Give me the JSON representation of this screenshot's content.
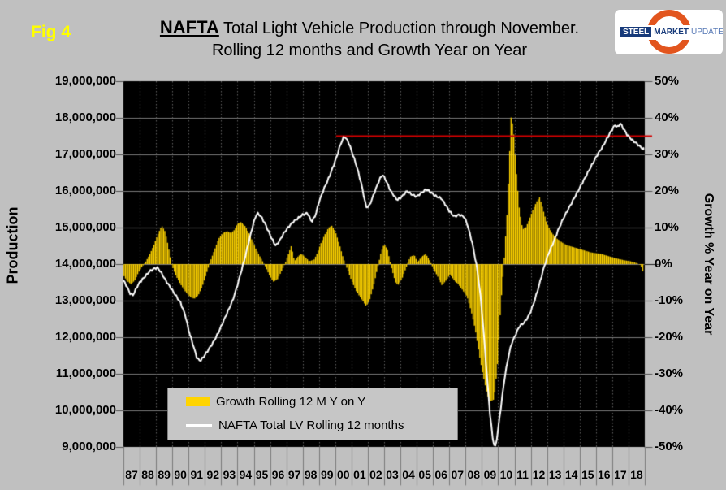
{
  "fig_label": "Fig 4",
  "title": {
    "line1_emph": "NAFTA",
    "line1_rest": " Total Light Vehicle Production through November.",
    "line2": "Rolling 12 months and Growth Year on Year"
  },
  "logo": {
    "word1": "STEEL",
    "word2": "MARKET",
    "word3": "UPDATE"
  },
  "colors": {
    "background": "#c0c0c0",
    "plot_background": "#000000",
    "bar": "#ffd400",
    "line": "#ffffff",
    "reference_line": "#d40000",
    "h_grid": "#7a7a7a",
    "v_grid": "#5f5f5f",
    "fig_label": "#ffff00"
  },
  "y_left": {
    "label": "Production",
    "min": 9000000,
    "max": 19000000,
    "tick_step": 1000000,
    "tick_labels": [
      "19,000,000",
      "18,000,000",
      "17,000,000",
      "16,000,000",
      "15,000,000",
      "14,000,000",
      "13,000,000",
      "12,000,000",
      "11,000,000",
      "10,000,000",
      "9,000,000"
    ]
  },
  "y_right": {
    "label": "Growth % Year on Year",
    "min": -50,
    "max": 50,
    "tick_step": 10,
    "tick_labels": [
      "50%",
      "40%",
      "30%",
      "20%",
      "10%",
      "0%",
      "-10%",
      "-20%",
      "-30%",
      "-40%",
      "-50%"
    ]
  },
  "x_axis": {
    "tick_labels": [
      "87",
      "88",
      "89",
      "90",
      "91",
      "92",
      "93",
      "94",
      "95",
      "96",
      "97",
      "98",
      "99",
      "00",
      "01",
      "02",
      "03",
      "04",
      "05",
      "06",
      "07",
      "08",
      "09",
      "10",
      "11",
      "12",
      "13",
      "14",
      "15",
      "16",
      "17",
      "18"
    ]
  },
  "legend": {
    "items": [
      {
        "label": "Growth Rolling 12 M Y on Y",
        "swatch": "bar"
      },
      {
        "label": "NAFTA Total LV Rolling 12 months",
        "swatch": "line"
      }
    ]
  },
  "chart_data": {
    "type": "combo: bar + line, dual axis",
    "x_range": [
      1987.0,
      2018.917
    ],
    "grid": {
      "horizontal": "solid",
      "vertical": "dotted yearly"
    },
    "legend_position": "bottom-left inside plot",
    "reference_line": {
      "axis": "right",
      "value_pct": 35,
      "equivalent_production": 17500000,
      "start_year": 2000.05,
      "color": "#d40000"
    },
    "series": [
      {
        "name": "Growth Rolling 12 M Y on Y",
        "type": "bar",
        "axis": "right",
        "unit": "percent",
        "color": "#ffd400",
        "points": [
          [
            1987,
            -3
          ],
          [
            1987.2,
            -4.5
          ],
          [
            1987.45,
            -5.5
          ],
          [
            1987.7,
            -4.5
          ],
          [
            1987.9,
            -2.5
          ],
          [
            1988.1,
            -1
          ],
          [
            1988.35,
            0.5
          ],
          [
            1988.6,
            2.5
          ],
          [
            1988.85,
            5
          ],
          [
            1989.1,
            8
          ],
          [
            1989.35,
            10.5
          ],
          [
            1989.55,
            9
          ],
          [
            1989.75,
            5
          ],
          [
            1989.95,
            0
          ],
          [
            1990.2,
            -3
          ],
          [
            1990.5,
            -5.5
          ],
          [
            1990.8,
            -7.5
          ],
          [
            1991.1,
            -9
          ],
          [
            1991.35,
            -9.5
          ],
          [
            1991.6,
            -8.5
          ],
          [
            1991.85,
            -6
          ],
          [
            1992.1,
            -2.5
          ],
          [
            1992.35,
            1
          ],
          [
            1992.6,
            4
          ],
          [
            1992.85,
            7
          ],
          [
            1993.1,
            8.5
          ],
          [
            1993.35,
            9
          ],
          [
            1993.6,
            8.5
          ],
          [
            1993.85,
            9.5
          ],
          [
            1994,
            11
          ],
          [
            1994.2,
            11.5
          ],
          [
            1994.45,
            10.5
          ],
          [
            1994.7,
            8.5
          ],
          [
            1994.95,
            6
          ],
          [
            1995.2,
            3.5
          ],
          [
            1995.45,
            1.5
          ],
          [
            1995.7,
            -0.5
          ],
          [
            1995.95,
            -3
          ],
          [
            1996.2,
            -4.8
          ],
          [
            1996.45,
            -4.2
          ],
          [
            1996.7,
            -2
          ],
          [
            1996.95,
            0.5
          ],
          [
            1997.15,
            3
          ],
          [
            1997.3,
            5
          ],
          [
            1997.5,
            0.8
          ],
          [
            1997.7,
            2
          ],
          [
            1997.9,
            2.8
          ],
          [
            1998.1,
            2.2
          ],
          [
            1998.4,
            0.8
          ],
          [
            1998.7,
            1.2
          ],
          [
            1998.9,
            3
          ],
          [
            1999.1,
            5.5
          ],
          [
            1999.35,
            8
          ],
          [
            1999.6,
            10
          ],
          [
            1999.8,
            10.5
          ],
          [
            2000,
            9
          ],
          [
            2000.25,
            5.5
          ],
          [
            2000.5,
            1.5
          ],
          [
            2000.75,
            -1.5
          ],
          [
            2001,
            -4.5
          ],
          [
            2001.3,
            -7.5
          ],
          [
            2001.6,
            -9.5
          ],
          [
            2001.9,
            -11.5
          ],
          [
            2002.1,
            -10
          ],
          [
            2002.35,
            -6
          ],
          [
            2002.6,
            -1
          ],
          [
            2002.8,
            3
          ],
          [
            2003,
            5.5
          ],
          [
            2003.2,
            4
          ],
          [
            2003.45,
            -1
          ],
          [
            2003.7,
            -5
          ],
          [
            2003.85,
            -5.8
          ],
          [
            2004.1,
            -4
          ],
          [
            2004.35,
            -1
          ],
          [
            2004.6,
            2
          ],
          [
            2004.85,
            2.5
          ],
          [
            2005.05,
            0.5
          ],
          [
            2005.3,
            2
          ],
          [
            2005.55,
            2.8
          ],
          [
            2005.8,
            1
          ],
          [
            2006.05,
            -1.5
          ],
          [
            2006.3,
            -3.5
          ],
          [
            2006.55,
            -5.8
          ],
          [
            2006.8,
            -4.5
          ],
          [
            2007.05,
            -2.8
          ],
          [
            2007.3,
            -4.5
          ],
          [
            2007.55,
            -5.5
          ],
          [
            2007.8,
            -7
          ],
          [
            2008.1,
            -9
          ],
          [
            2008.35,
            -13
          ],
          [
            2008.6,
            -18
          ],
          [
            2008.85,
            -25
          ],
          [
            2009.1,
            -31
          ],
          [
            2009.35,
            -36
          ],
          [
            2009.55,
            -37.5
          ],
          [
            2009.75,
            -37
          ],
          [
            2009.95,
            -28
          ],
          [
            2010.15,
            -12
          ],
          [
            2010.35,
            0
          ],
          [
            2010.55,
            14
          ],
          [
            2010.7,
            30
          ],
          [
            2010.8,
            41
          ],
          [
            2010.95,
            36
          ],
          [
            2011.1,
            26
          ],
          [
            2011.3,
            15
          ],
          [
            2011.5,
            9.5
          ],
          [
            2011.7,
            10
          ],
          [
            2011.9,
            12
          ],
          [
            2012.1,
            14.5
          ],
          [
            2012.35,
            17
          ],
          [
            2012.55,
            18.3
          ],
          [
            2012.75,
            15
          ],
          [
            2013,
            11
          ],
          [
            2013.3,
            8.5
          ],
          [
            2013.6,
            7
          ],
          [
            2013.9,
            6
          ],
          [
            2014.2,
            5.2
          ],
          [
            2014.5,
            4.8
          ],
          [
            2014.8,
            4.4
          ],
          [
            2015.1,
            4
          ],
          [
            2015.4,
            3.6
          ],
          [
            2015.7,
            3.2
          ],
          [
            2016,
            3
          ],
          [
            2016.3,
            2.8
          ],
          [
            2016.6,
            2.4
          ],
          [
            2016.9,
            2
          ],
          [
            2017.2,
            1.6
          ],
          [
            2017.5,
            1.3
          ],
          [
            2017.8,
            1
          ],
          [
            2018.1,
            0.8
          ],
          [
            2018.4,
            0.4
          ],
          [
            2018.6,
            0.1
          ],
          [
            2018.75,
            -0.3
          ],
          [
            2018.85,
            -1.5
          ],
          [
            2018.92,
            -2.8
          ]
        ]
      },
      {
        "name": "NAFTA Total LV Rolling 12 months",
        "type": "line",
        "axis": "left",
        "unit": "millions of vehicles",
        "color": "#ffffff",
        "points": [
          [
            1987,
            13.55
          ],
          [
            1987.2,
            13.4
          ],
          [
            1987.4,
            13.2
          ],
          [
            1987.6,
            13.15
          ],
          [
            1987.8,
            13.35
          ],
          [
            1988,
            13.5
          ],
          [
            1988.3,
            13.65
          ],
          [
            1988.6,
            13.8
          ],
          [
            1988.9,
            13.88
          ],
          [
            1989.1,
            13.9
          ],
          [
            1989.3,
            13.78
          ],
          [
            1989.6,
            13.55
          ],
          [
            1989.9,
            13.35
          ],
          [
            1990.2,
            13.15
          ],
          [
            1990.5,
            12.95
          ],
          [
            1990.8,
            12.6
          ],
          [
            1991,
            12.2
          ],
          [
            1991.3,
            11.75
          ],
          [
            1991.5,
            11.45
          ],
          [
            1991.7,
            11.35
          ],
          [
            1991.9,
            11.45
          ],
          [
            1992.2,
            11.65
          ],
          [
            1992.5,
            11.85
          ],
          [
            1992.8,
            12.1
          ],
          [
            1993.1,
            12.4
          ],
          [
            1993.4,
            12.7
          ],
          [
            1993.7,
            13
          ],
          [
            1993.95,
            13.35
          ],
          [
            1994.2,
            13.75
          ],
          [
            1994.5,
            14.25
          ],
          [
            1994.8,
            14.8
          ],
          [
            1995,
            15.15
          ],
          [
            1995.2,
            15.4
          ],
          [
            1995.45,
            15.3
          ],
          [
            1995.7,
            15.1
          ],
          [
            1995.9,
            14.9
          ],
          [
            1996.1,
            14.7
          ],
          [
            1996.35,
            14.5
          ],
          [
            1996.6,
            14.65
          ],
          [
            1996.85,
            14.85
          ],
          [
            1997.1,
            15
          ],
          [
            1997.4,
            15.15
          ],
          [
            1997.7,
            15.25
          ],
          [
            1998,
            15.35
          ],
          [
            1998.3,
            15.4
          ],
          [
            1998.55,
            15.15
          ],
          [
            1998.8,
            15.35
          ],
          [
            1999,
            15.7
          ],
          [
            1999.3,
            16.05
          ],
          [
            1999.6,
            16.35
          ],
          [
            1999.9,
            16.7
          ],
          [
            2000.1,
            16.95
          ],
          [
            2000.3,
            17.25
          ],
          [
            2000.55,
            17.5
          ],
          [
            2000.8,
            17.35
          ],
          [
            2001,
            17.1
          ],
          [
            2001.3,
            16.7
          ],
          [
            2001.6,
            16.2
          ],
          [
            2001.9,
            15.55
          ],
          [
            2002.1,
            15.6
          ],
          [
            2002.4,
            15.95
          ],
          [
            2002.7,
            16.3
          ],
          [
            2002.9,
            16.45
          ],
          [
            2003.1,
            16.3
          ],
          [
            2003.4,
            16
          ],
          [
            2003.8,
            15.75
          ],
          [
            2004.1,
            15.85
          ],
          [
            2004.4,
            16
          ],
          [
            2004.7,
            15.9
          ],
          [
            2005,
            15.85
          ],
          [
            2005.3,
            15.95
          ],
          [
            2005.6,
            16.05
          ],
          [
            2005.9,
            15.95
          ],
          [
            2006.2,
            15.85
          ],
          [
            2006.5,
            15.8
          ],
          [
            2006.8,
            15.6
          ],
          [
            2007,
            15.45
          ],
          [
            2007.3,
            15.3
          ],
          [
            2007.6,
            15.35
          ],
          [
            2007.9,
            15.3
          ],
          [
            2008.1,
            15.1
          ],
          [
            2008.4,
            14.6
          ],
          [
            2008.7,
            13.9
          ],
          [
            2008.9,
            13.2
          ],
          [
            2009.1,
            12.2
          ],
          [
            2009.3,
            11
          ],
          [
            2009.5,
            9.9
          ],
          [
            2009.7,
            9.1
          ],
          [
            2009.85,
            9
          ],
          [
            2010,
            9.5
          ],
          [
            2010.2,
            10.2
          ],
          [
            2010.4,
            10.9
          ],
          [
            2010.6,
            11.4
          ],
          [
            2010.8,
            11.8
          ],
          [
            2011,
            12
          ],
          [
            2011.3,
            12.3
          ],
          [
            2011.6,
            12.4
          ],
          [
            2011.9,
            12.6
          ],
          [
            2012.2,
            12.95
          ],
          [
            2012.5,
            13.4
          ],
          [
            2012.8,
            13.9
          ],
          [
            2013.1,
            14.3
          ],
          [
            2013.4,
            14.6
          ],
          [
            2013.7,
            14.95
          ],
          [
            2014,
            15.25
          ],
          [
            2014.3,
            15.5
          ],
          [
            2014.6,
            15.75
          ],
          [
            2014.9,
            16
          ],
          [
            2015.2,
            16.25
          ],
          [
            2015.5,
            16.5
          ],
          [
            2015.8,
            16.75
          ],
          [
            2016.1,
            17
          ],
          [
            2016.4,
            17.2
          ],
          [
            2016.7,
            17.45
          ],
          [
            2016.95,
            17.65
          ],
          [
            2017.15,
            17.8
          ],
          [
            2017.35,
            17.75
          ],
          [
            2017.5,
            17.85
          ],
          [
            2017.7,
            17.7
          ],
          [
            2017.9,
            17.55
          ],
          [
            2018.2,
            17.4
          ],
          [
            2018.5,
            17.3
          ],
          [
            2018.75,
            17.2
          ],
          [
            2018.92,
            17.15
          ]
        ]
      }
    ]
  }
}
